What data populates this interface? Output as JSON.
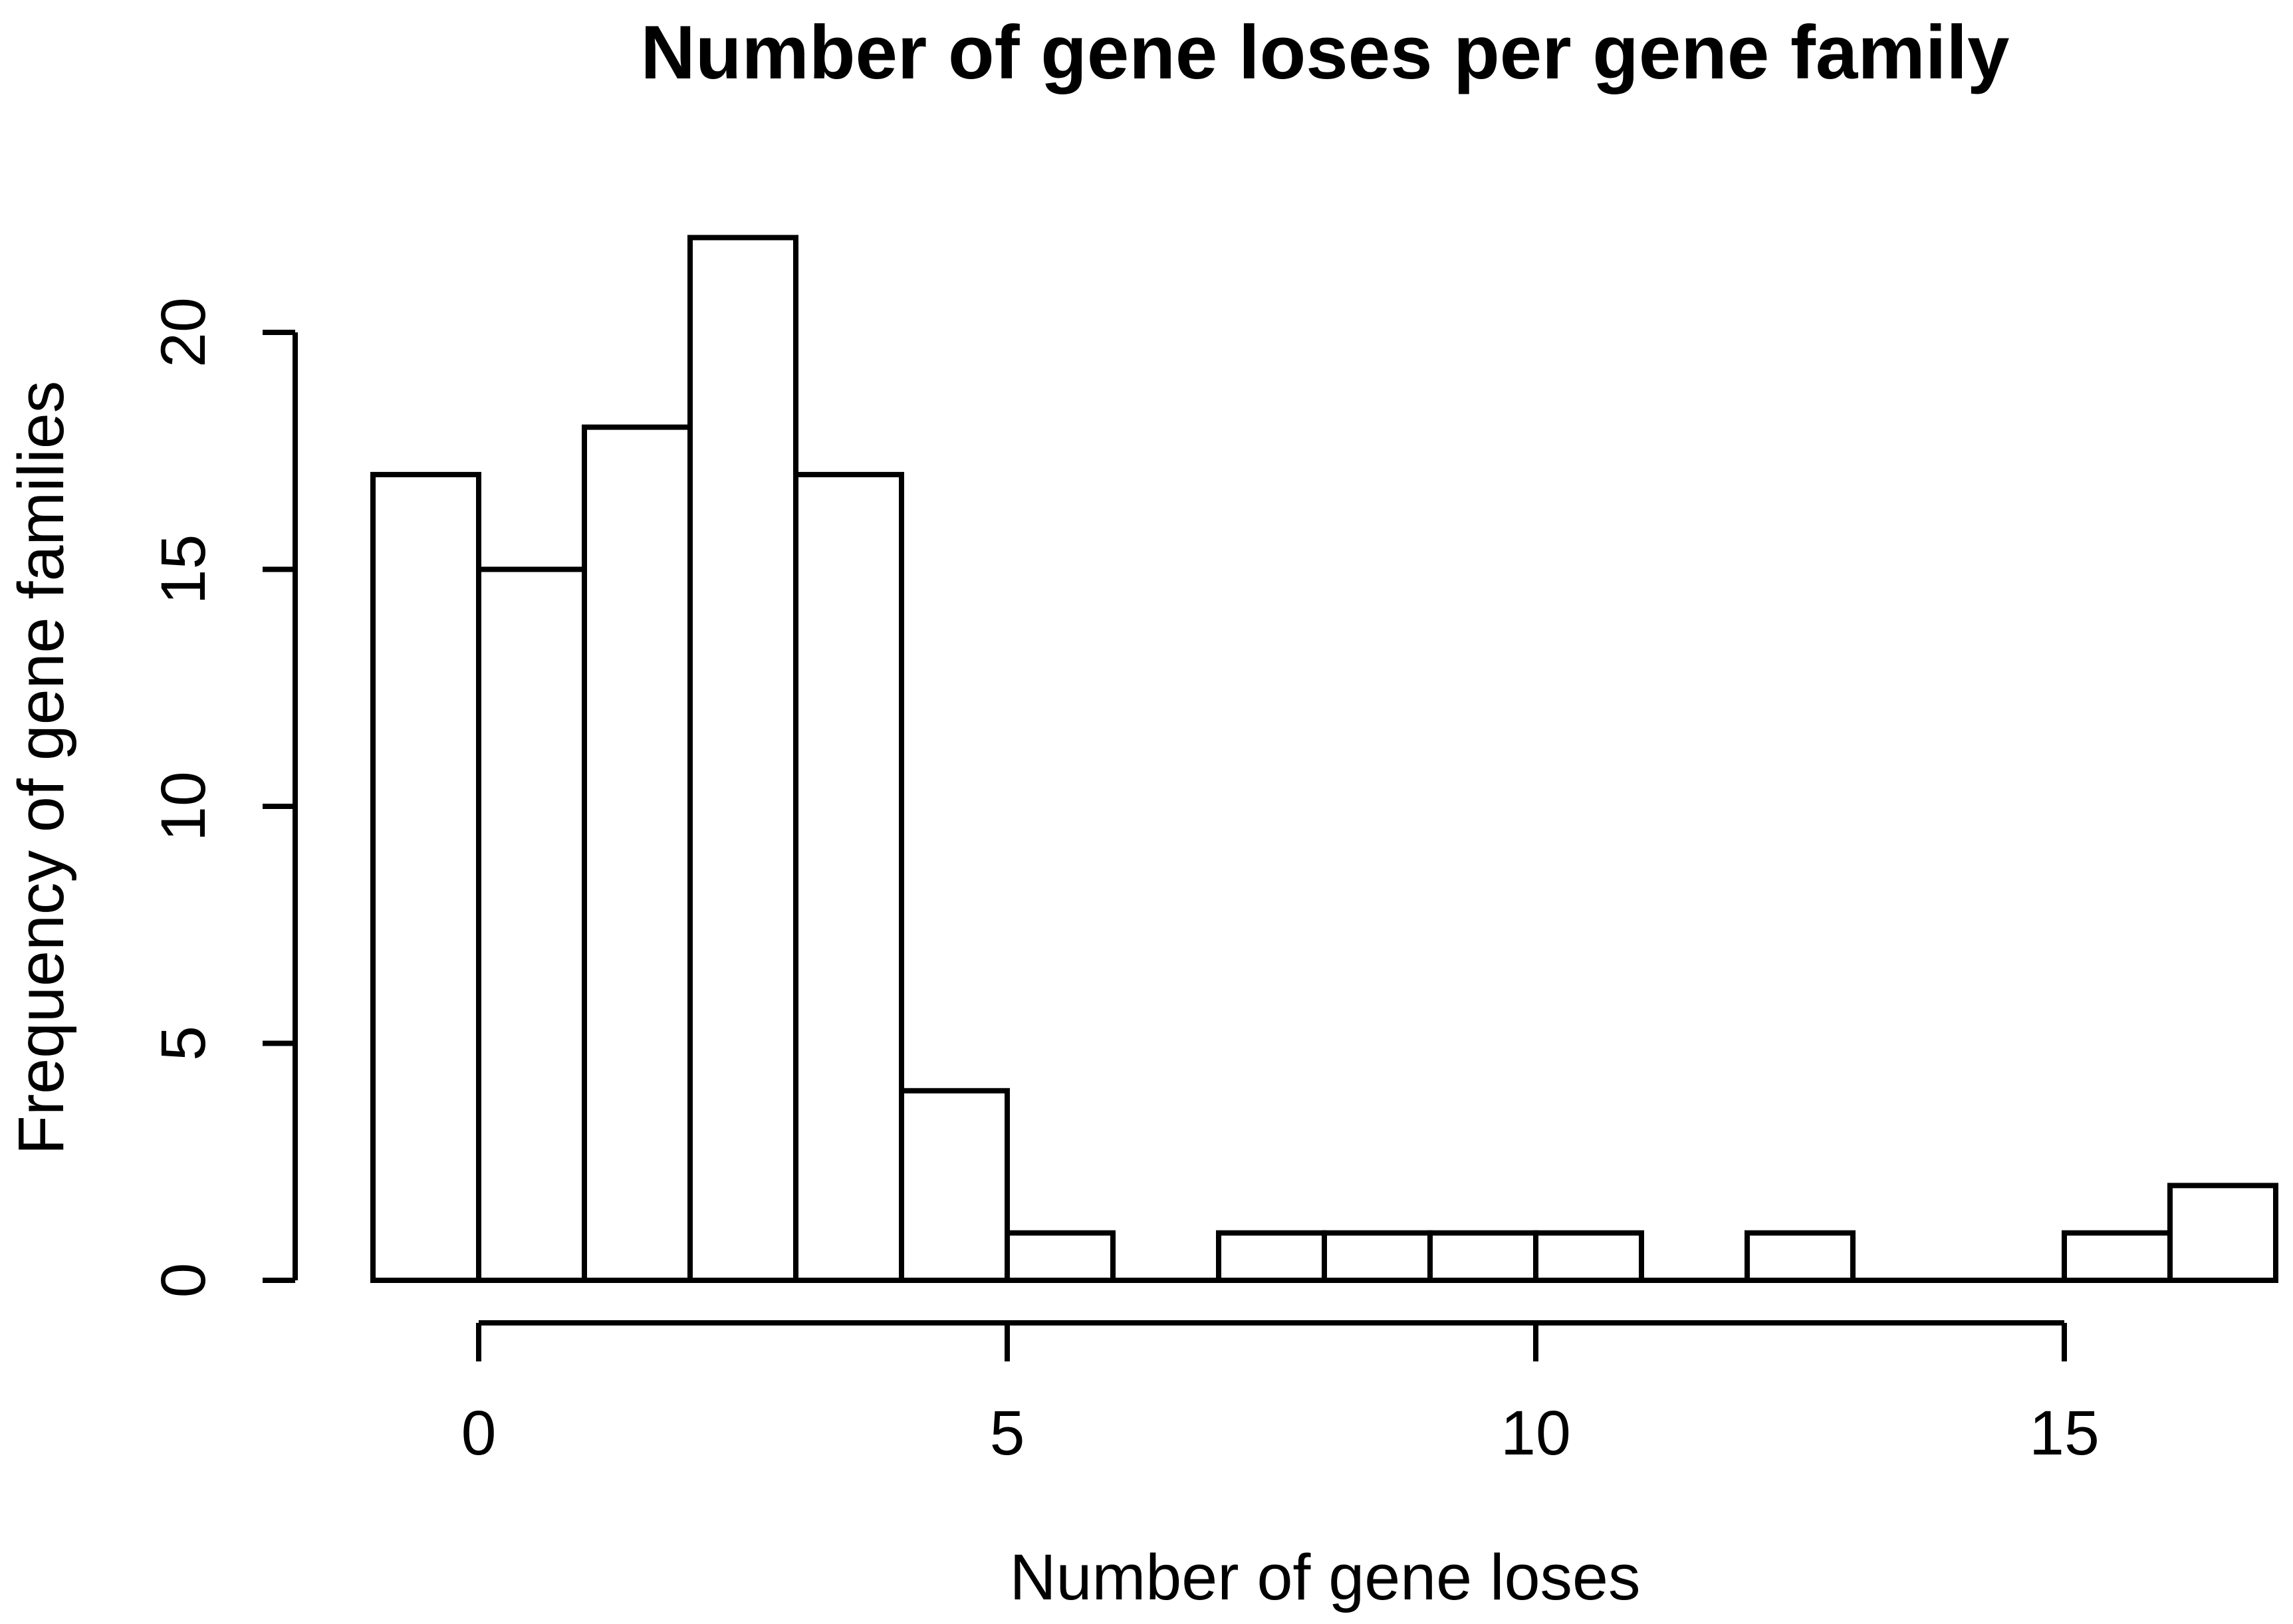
{
  "chart_data": {
    "type": "bar",
    "subtype": "histogram",
    "title": "Number of gene loses per gene family",
    "xlabel": "Number of gene loses",
    "ylabel": "Frequency of gene families",
    "breaks": [
      -1,
      0,
      1,
      2,
      3,
      4,
      5,
      6,
      7,
      8,
      9,
      10,
      11,
      12,
      13,
      14,
      15,
      16,
      17
    ],
    "counts": [
      17,
      15,
      18,
      22,
      17,
      4,
      1,
      0,
      1,
      1,
      1,
      1,
      0,
      1,
      0,
      0,
      1,
      2
    ],
    "x_ticks": [
      0,
      5,
      10,
      15
    ],
    "y_ticks": [
      0,
      5,
      10,
      15,
      20
    ],
    "xlim": [
      -1,
      17
    ],
    "ylim": [
      0,
      22
    ],
    "grid": false,
    "legend": "none",
    "bar_fill": "#ffffff",
    "bar_stroke": "#000000",
    "axis_color": "#000000",
    "text_color": "#000000",
    "background": "#ffffff"
  }
}
